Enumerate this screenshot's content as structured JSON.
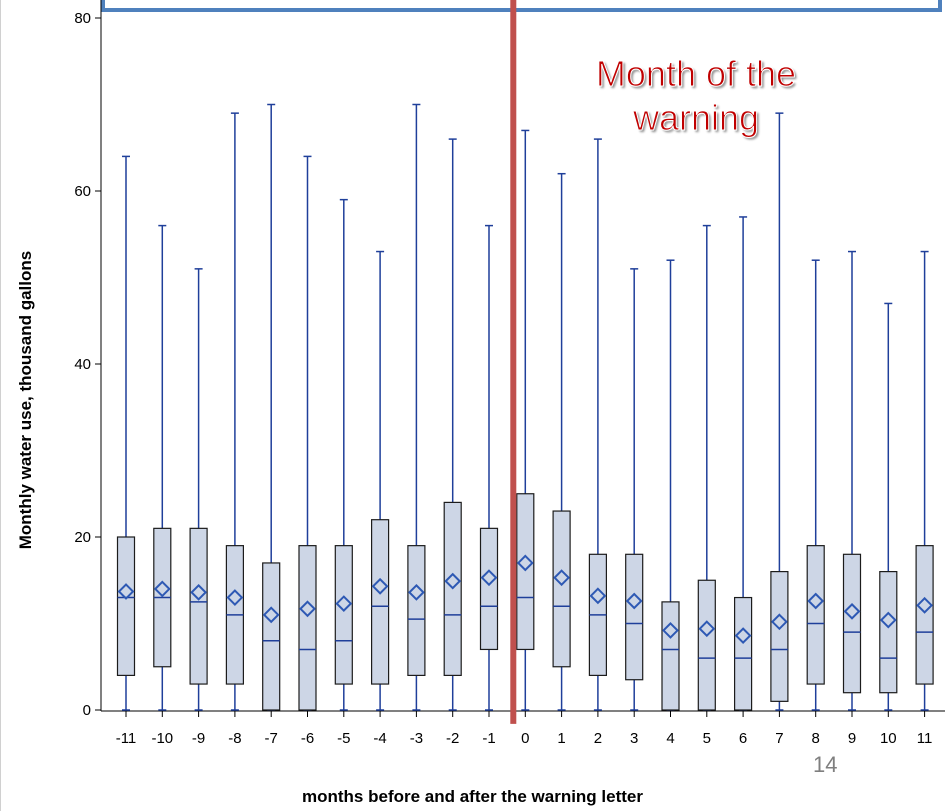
{
  "chart_data": {
    "type": "box",
    "title": "",
    "xlabel": "months before and after the warning letter",
    "ylabel": "Monthly water use, thousand gallons",
    "ylim": [
      0,
      80
    ],
    "yticks": [
      0,
      20,
      40,
      60,
      80
    ],
    "categories": [
      "-11",
      "-10",
      "-9",
      "-8",
      "-7",
      "-6",
      "-5",
      "-4",
      "-3",
      "-2",
      "-1",
      "0",
      "1",
      "2",
      "3",
      "4",
      "5",
      "6",
      "7",
      "8",
      "9",
      "10",
      "11"
    ],
    "boxes": [
      {
        "min": 0,
        "q1": 4,
        "median": 13,
        "mean": 13.7,
        "q3": 20,
        "max": 64
      },
      {
        "min": 0,
        "q1": 5,
        "median": 13,
        "mean": 14,
        "q3": 21,
        "max": 56
      },
      {
        "min": 0,
        "q1": 3,
        "median": 12.5,
        "mean": 13.6,
        "q3": 21,
        "max": 51
      },
      {
        "min": 0,
        "q1": 3,
        "median": 11,
        "mean": 13,
        "q3": 19,
        "max": 69
      },
      {
        "min": 0,
        "q1": 0,
        "median": 8,
        "mean": 11,
        "q3": 17,
        "max": 70
      },
      {
        "min": 0,
        "q1": 0,
        "median": 7,
        "mean": 11.7,
        "q3": 19,
        "max": 64
      },
      {
        "min": 0,
        "q1": 3,
        "median": 8,
        "mean": 12.3,
        "q3": 19,
        "max": 59
      },
      {
        "min": 0,
        "q1": 3,
        "median": 12,
        "mean": 14.3,
        "q3": 22,
        "max": 53
      },
      {
        "min": 0,
        "q1": 4,
        "median": 10.5,
        "mean": 13.6,
        "q3": 19,
        "max": 70
      },
      {
        "min": 0,
        "q1": 4,
        "median": 11,
        "mean": 14.9,
        "q3": 24,
        "max": 66
      },
      {
        "min": 0,
        "q1": 7,
        "median": 12,
        "mean": 15.3,
        "q3": 21,
        "max": 56
      },
      {
        "min": 0,
        "q1": 7,
        "median": 13,
        "mean": 17,
        "q3": 25,
        "max": 67
      },
      {
        "min": 0,
        "q1": 5,
        "median": 12,
        "mean": 15.3,
        "q3": 23,
        "max": 62
      },
      {
        "min": 0,
        "q1": 4,
        "median": 11,
        "mean": 13.2,
        "q3": 18,
        "max": 66
      },
      {
        "min": 0,
        "q1": 3.5,
        "median": 10,
        "mean": 12.6,
        "q3": 18,
        "max": 51
      },
      {
        "min": 0,
        "q1": 0,
        "median": 7,
        "mean": 9.2,
        "q3": 12.5,
        "max": 52
      },
      {
        "min": 0,
        "q1": 0,
        "median": 6,
        "mean": 9.4,
        "q3": 15,
        "max": 56
      },
      {
        "min": 0,
        "q1": 0,
        "median": 6,
        "mean": 8.6,
        "q3": 13,
        "max": 57
      },
      {
        "min": 0,
        "q1": 1,
        "median": 7,
        "mean": 10.2,
        "q3": 16,
        "max": 69
      },
      {
        "min": 0,
        "q1": 3,
        "median": 10,
        "mean": 12.6,
        "q3": 19,
        "max": 52
      },
      {
        "min": 0,
        "q1": 2,
        "median": 9,
        "mean": 11.4,
        "q3": 18,
        "max": 53
      },
      {
        "min": 0,
        "q1": 2,
        "median": 6,
        "mean": 10.4,
        "q3": 16,
        "max": 47
      },
      {
        "min": 0,
        "q1": 3,
        "median": 9,
        "mean": 12.1,
        "q3": 19,
        "max": 53
      }
    ],
    "annotation": {
      "text": "Month of the warning",
      "at_category": "0"
    },
    "grid": false,
    "colors": {
      "box_fill": "#cdd6e6",
      "box_edge": "#1c1c1c",
      "whisker": "#1f3f9a",
      "median": "#1f3f9a",
      "mean_marker": "#2e59b4",
      "warning_line": "#c0504d",
      "highlight_box": "#4f81bd",
      "annotation_text": "#c00000"
    }
  },
  "annotation": {
    "line1": "Month of the",
    "line2": "warning"
  },
  "page_number": "14"
}
